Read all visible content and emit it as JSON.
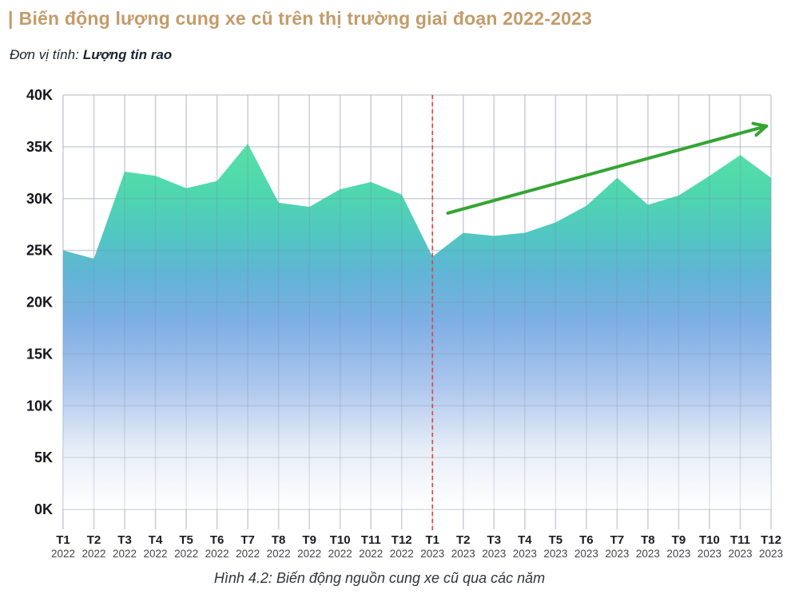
{
  "header": {
    "title_prefix": "|",
    "title": "Biến động lượng cung xe cũ trên thị trường giai đoạn 2022-2023",
    "unit_label": "Đơn vị tính:",
    "unit_value": "Lượng tin rao"
  },
  "caption": "Hình 4.2: Biến động nguồn cung xe cũ qua các năm",
  "colors": {
    "title_accent": "#C49B6A",
    "grid": "#E3E4E9",
    "grid_over_fill": "rgba(110,120,150,0.18)",
    "divider_line": "#E0493F",
    "trend_arrow": "#33A532",
    "tick_month": "#1B1B22",
    "tick_year": "#45454D",
    "ytick": "#16161D",
    "gradient_stops": [
      {
        "frac": 0.0,
        "color": "#FFFFFF"
      },
      {
        "frac": 0.16,
        "color": "#E8EEF7"
      },
      {
        "frac": 0.33,
        "color": "#AEC8EE"
      },
      {
        "frac": 0.51,
        "color": "#7FAFE4"
      },
      {
        "frac": 0.65,
        "color": "#60B5D5"
      },
      {
        "frac": 0.74,
        "color": "#52C5C4"
      },
      {
        "frac": 0.86,
        "color": "#4FD6AF"
      },
      {
        "frac": 1.0,
        "color": "#56E1A6"
      }
    ]
  },
  "chart_data": {
    "type": "area",
    "title": "Biến động lượng cung xe cũ trên thị trường giai đoạn 2022-2023",
    "ylabel": "Lượng tin rao",
    "categories": [
      {
        "month": "T1",
        "year": "2022"
      },
      {
        "month": "T2",
        "year": "2022"
      },
      {
        "month": "T3",
        "year": "2022"
      },
      {
        "month": "T4",
        "year": "2022"
      },
      {
        "month": "T5",
        "year": "2022"
      },
      {
        "month": "T6",
        "year": "2022"
      },
      {
        "month": "T7",
        "year": "2022"
      },
      {
        "month": "T8",
        "year": "2022"
      },
      {
        "month": "T9",
        "year": "2022"
      },
      {
        "month": "T10",
        "year": "2022"
      },
      {
        "month": "T11",
        "year": "2022"
      },
      {
        "month": "T12",
        "year": "2022"
      },
      {
        "month": "T1",
        "year": "2023"
      },
      {
        "month": "T2",
        "year": "2023"
      },
      {
        "month": "T3",
        "year": "2023"
      },
      {
        "month": "T4",
        "year": "2023"
      },
      {
        "month": "T5",
        "year": "2023"
      },
      {
        "month": "T6",
        "year": "2023"
      },
      {
        "month": "T7",
        "year": "2023"
      },
      {
        "month": "T8",
        "year": "2023"
      },
      {
        "month": "T9",
        "year": "2023"
      },
      {
        "month": "T10",
        "year": "2023"
      },
      {
        "month": "T11",
        "year": "2023"
      },
      {
        "month": "T12",
        "year": "2023"
      }
    ],
    "values": [
      25000,
      24200,
      32600,
      32200,
      31000,
      31700,
      35300,
      29600,
      29200,
      30900,
      31600,
      30400,
      24400,
      26700,
      26400,
      26700,
      27700,
      29300,
      32000,
      29400,
      30300,
      32200,
      34200,
      32000
    ],
    "ylim": [
      0,
      40000
    ],
    "yticks": [
      0,
      5000,
      10000,
      15000,
      20000,
      25000,
      30000,
      35000,
      40000
    ],
    "ytick_format": "K",
    "grid": true,
    "year_divider": {
      "month_index": 12,
      "style": "dashed-red"
    },
    "trend_arrow": {
      "from_month_index": 12.5,
      "from_value": 28600,
      "to_month_index": 22.85,
      "to_value": 37000
    }
  }
}
